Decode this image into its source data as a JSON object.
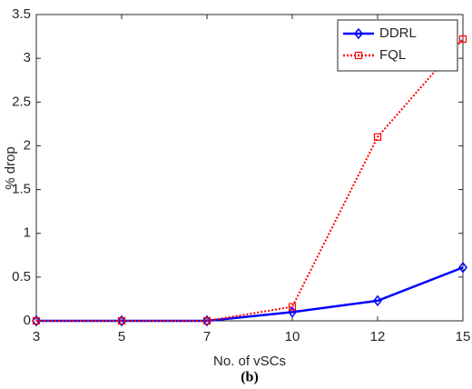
{
  "chart_data": {
    "type": "line",
    "xlabel": "No. of vSCs",
    "ylabel": "% drop",
    "caption": "(b)",
    "categories": [
      "3",
      "5",
      "7",
      "10",
      "12",
      "15"
    ],
    "series": [
      {
        "name": "DDRL",
        "color": "#0000ff",
        "marker": "diamond",
        "linestyle": "solid",
        "values": [
          0,
          0,
          0,
          0.1,
          0.23,
          0.61
        ]
      },
      {
        "name": "FQL",
        "color": "#ff0000",
        "marker": "square",
        "linestyle": "dotted",
        "values": [
          0,
          0,
          0,
          0.16,
          2.1,
          3.22
        ]
      }
    ],
    "ylim": [
      0,
      3.5
    ],
    "yticks": [
      0,
      0.5,
      1,
      1.5,
      2,
      2.5,
      3,
      3.5
    ],
    "legend": "upper-right"
  }
}
